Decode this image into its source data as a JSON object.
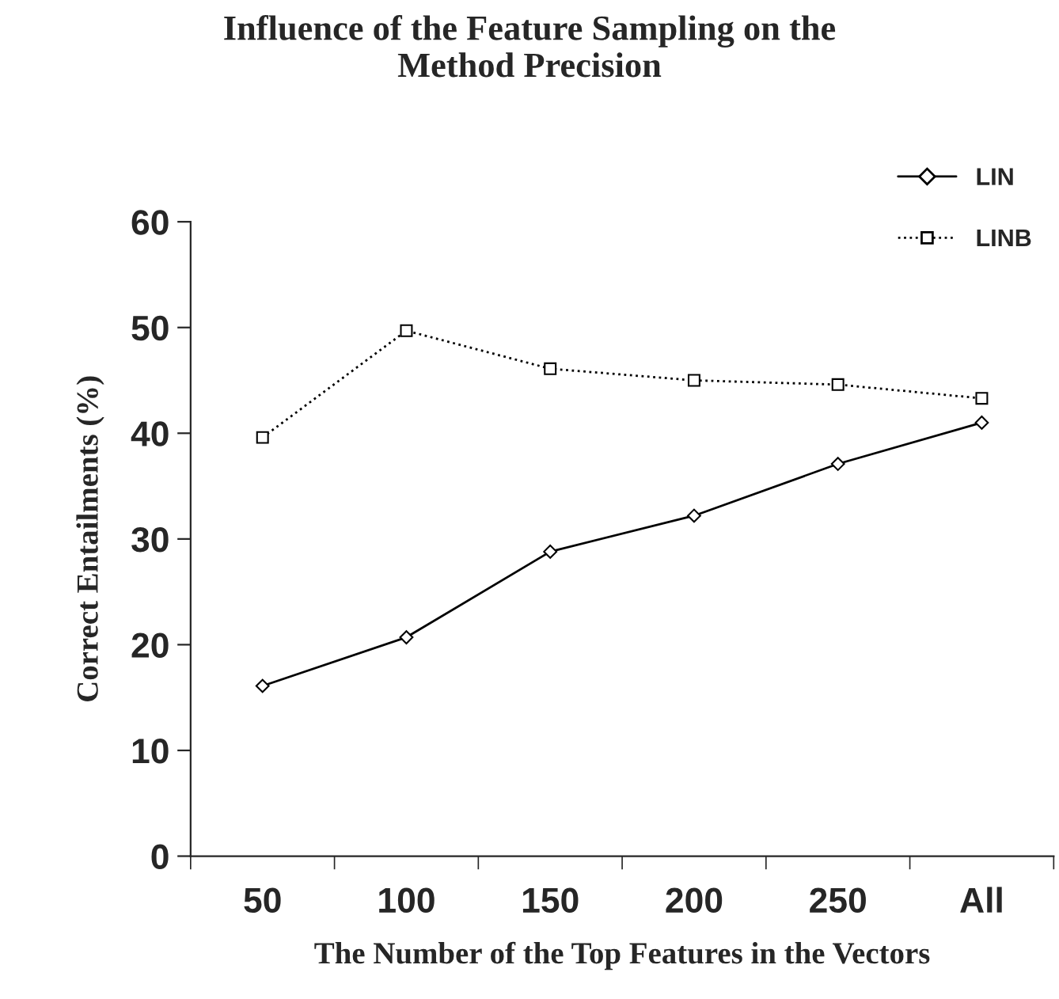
{
  "chart_data": {
    "type": "line",
    "title": "Influence of the Feature Sampling on the\nMethod Precision",
    "xlabel": "The Number of the Top Features in the Vectors",
    "ylabel": "Correct Entailments (%)",
    "categories": [
      "50",
      "100",
      "150",
      "200",
      "250",
      "All"
    ],
    "series": [
      {
        "name": "LIN",
        "color": "#000000",
        "marker": "diamond",
        "line_style": "solid",
        "values": [
          16.1,
          20.7,
          28.8,
          32.2,
          37.1,
          41.0
        ]
      },
      {
        "name": "LINB",
        "color": "#000000",
        "marker": "square",
        "line_style": "dotted",
        "values": [
          39.6,
          49.7,
          46.1,
          45.0,
          44.6,
          43.3
        ]
      }
    ],
    "ylim": [
      0,
      60
    ],
    "yticks": [
      0,
      10,
      20,
      30,
      40,
      50,
      60
    ],
    "grid": false,
    "legend": "top right"
  }
}
